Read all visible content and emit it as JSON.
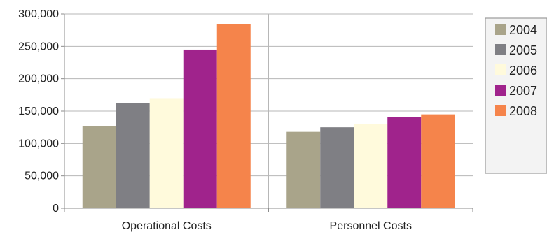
{
  "chart_data": {
    "type": "bar",
    "title": "",
    "xlabel": "",
    "ylabel": "",
    "categories": [
      "Operational Costs",
      "Personnel Costs"
    ],
    "series": [
      {
        "name": "2004",
        "values": [
          127000,
          118000
        ]
      },
      {
        "name": "2005",
        "values": [
          162000,
          125000
        ]
      },
      {
        "name": "2006",
        "values": [
          170000,
          130000
        ]
      },
      {
        "name": "2007",
        "values": [
          245000,
          141000
        ]
      },
      {
        "name": "2008",
        "values": [
          284000,
          145000
        ]
      }
    ],
    "ylim": [
      0,
      300000
    ],
    "yticks": [
      "0",
      "50,000",
      "100,000",
      "150,000",
      "200,000",
      "250,000",
      "300,000"
    ],
    "grid": true,
    "legend_position": "right"
  },
  "colors": {
    "series": [
      "#a9a48a",
      "#7f7f84",
      "#fffadc",
      "#a0238c",
      "#f5844b"
    ],
    "grid": "#b7b7b7",
    "axis": "#8c8c8c",
    "legend_bg": "#f3f3f3",
    "legend_border": "#9a9a9a"
  }
}
